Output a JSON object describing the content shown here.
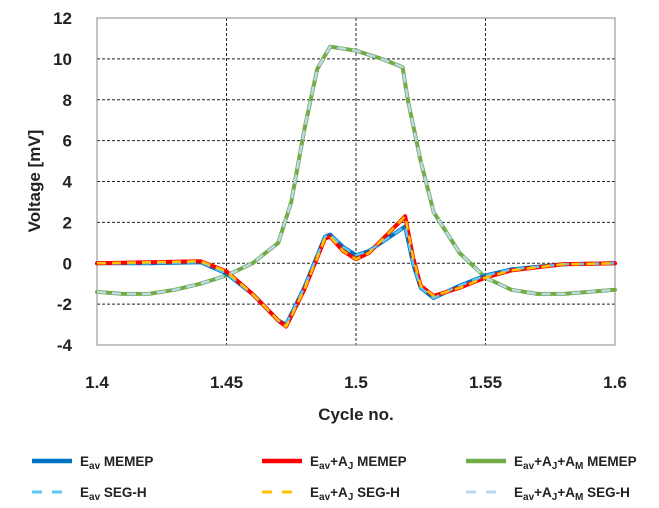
{
  "chart_data": {
    "type": "line",
    "xlabel": "Cycle no.",
    "ylabel": "Voltage [mV]",
    "xlim": [
      1.4,
      1.6
    ],
    "ylim": [
      -4,
      12
    ],
    "x_ticks": [
      "1.4",
      "1.45",
      "1.5",
      "1.55",
      "1.6"
    ],
    "y_ticks": [
      "12",
      "10",
      "8",
      "6",
      "4",
      "2",
      "0",
      "-2",
      "-4"
    ],
    "grid": true,
    "legend_position": "bottom",
    "series": [
      {
        "name": "E_av MEMEP",
        "color": "#0070c0",
        "style": "solid",
        "points": [
          [
            1.4,
            0.0
          ],
          [
            1.42,
            0.0
          ],
          [
            1.44,
            0.05
          ],
          [
            1.45,
            -0.5
          ],
          [
            1.46,
            -1.5
          ],
          [
            1.47,
            -2.8
          ],
          [
            1.473,
            -3.0
          ],
          [
            1.48,
            -1.2
          ],
          [
            1.488,
            1.3
          ],
          [
            1.49,
            1.4
          ],
          [
            1.495,
            0.8
          ],
          [
            1.5,
            0.4
          ],
          [
            1.505,
            0.6
          ],
          [
            1.512,
            1.2
          ],
          [
            1.519,
            1.8
          ],
          [
            1.522,
            0.0
          ],
          [
            1.525,
            -1.2
          ],
          [
            1.53,
            -1.7
          ],
          [
            1.54,
            -1.1
          ],
          [
            1.55,
            -0.6
          ],
          [
            1.56,
            -0.3
          ],
          [
            1.58,
            -0.05
          ],
          [
            1.6,
            0.0
          ]
        ]
      },
      {
        "name": "E_av SEG-H",
        "color": "#5bc8f0",
        "style": "dashed",
        "points": [
          [
            1.4,
            0.0
          ],
          [
            1.42,
            0.0
          ],
          [
            1.44,
            0.05
          ],
          [
            1.45,
            -0.5
          ],
          [
            1.46,
            -1.5
          ],
          [
            1.47,
            -2.8
          ],
          [
            1.473,
            -3.0
          ],
          [
            1.48,
            -1.2
          ],
          [
            1.488,
            1.3
          ],
          [
            1.49,
            1.4
          ],
          [
            1.495,
            0.8
          ],
          [
            1.5,
            0.4
          ],
          [
            1.505,
            0.6
          ],
          [
            1.512,
            1.2
          ],
          [
            1.519,
            1.8
          ],
          [
            1.522,
            0.0
          ],
          [
            1.525,
            -1.2
          ],
          [
            1.53,
            -1.7
          ],
          [
            1.54,
            -1.1
          ],
          [
            1.55,
            -0.6
          ],
          [
            1.56,
            -0.3
          ],
          [
            1.58,
            -0.05
          ],
          [
            1.6,
            0.0
          ]
        ]
      },
      {
        "name": "E_av+A_J MEMEP",
        "color": "#ff0000",
        "style": "solid",
        "points": [
          [
            1.4,
            0.0
          ],
          [
            1.42,
            0.05
          ],
          [
            1.44,
            0.1
          ],
          [
            1.45,
            -0.4
          ],
          [
            1.46,
            -1.5
          ],
          [
            1.47,
            -2.8
          ],
          [
            1.473,
            -3.1
          ],
          [
            1.48,
            -1.3
          ],
          [
            1.488,
            1.2
          ],
          [
            1.49,
            1.3
          ],
          [
            1.495,
            0.6
          ],
          [
            1.5,
            0.2
          ],
          [
            1.505,
            0.5
          ],
          [
            1.512,
            1.4
          ],
          [
            1.519,
            2.3
          ],
          [
            1.522,
            0.3
          ],
          [
            1.525,
            -1.1
          ],
          [
            1.53,
            -1.6
          ],
          [
            1.54,
            -1.2
          ],
          [
            1.55,
            -0.7
          ],
          [
            1.56,
            -0.35
          ],
          [
            1.58,
            -0.05
          ],
          [
            1.6,
            0.0
          ]
        ]
      },
      {
        "name": "E_av+A_J SEG-H",
        "color": "#ffc000",
        "style": "dashed",
        "points": [
          [
            1.4,
            0.0
          ],
          [
            1.42,
            0.05
          ],
          [
            1.44,
            0.1
          ],
          [
            1.45,
            -0.4
          ],
          [
            1.46,
            -1.5
          ],
          [
            1.47,
            -2.8
          ],
          [
            1.473,
            -3.1
          ],
          [
            1.48,
            -1.3
          ],
          [
            1.488,
            1.2
          ],
          [
            1.49,
            1.3
          ],
          [
            1.495,
            0.6
          ],
          [
            1.5,
            0.2
          ],
          [
            1.505,
            0.5
          ],
          [
            1.512,
            1.4
          ],
          [
            1.519,
            2.3
          ],
          [
            1.522,
            0.3
          ],
          [
            1.525,
            -1.1
          ],
          [
            1.53,
            -1.6
          ],
          [
            1.54,
            -1.2
          ],
          [
            1.55,
            -0.7
          ],
          [
            1.56,
            -0.35
          ],
          [
            1.58,
            -0.05
          ],
          [
            1.6,
            0.0
          ]
        ]
      },
      {
        "name": "E_av+A_J+A_M MEMEP",
        "color": "#70ad47",
        "style": "solid",
        "points": [
          [
            1.4,
            -1.4
          ],
          [
            1.41,
            -1.5
          ],
          [
            1.42,
            -1.5
          ],
          [
            1.43,
            -1.3
          ],
          [
            1.44,
            -1.0
          ],
          [
            1.45,
            -0.6
          ],
          [
            1.46,
            0.0
          ],
          [
            1.47,
            1.0
          ],
          [
            1.475,
            3.0
          ],
          [
            1.48,
            6.5
          ],
          [
            1.485,
            9.5
          ],
          [
            1.49,
            10.6
          ],
          [
            1.5,
            10.4
          ],
          [
            1.51,
            10.0
          ],
          [
            1.518,
            9.6
          ],
          [
            1.52,
            8.0
          ],
          [
            1.525,
            5.0
          ],
          [
            1.53,
            2.5
          ],
          [
            1.54,
            0.5
          ],
          [
            1.55,
            -0.7
          ],
          [
            1.56,
            -1.3
          ],
          [
            1.57,
            -1.5
          ],
          [
            1.58,
            -1.5
          ],
          [
            1.59,
            -1.4
          ],
          [
            1.6,
            -1.3
          ]
        ]
      },
      {
        "name": "E_av+A_J+A_M SEG-H",
        "color": "#bdd7ee",
        "style": "dashed",
        "points": [
          [
            1.4,
            -1.4
          ],
          [
            1.41,
            -1.5
          ],
          [
            1.42,
            -1.5
          ],
          [
            1.43,
            -1.3
          ],
          [
            1.44,
            -1.0
          ],
          [
            1.45,
            -0.6
          ],
          [
            1.46,
            0.0
          ],
          [
            1.47,
            1.0
          ],
          [
            1.475,
            3.0
          ],
          [
            1.48,
            6.5
          ],
          [
            1.485,
            9.5
          ],
          [
            1.49,
            10.6
          ],
          [
            1.5,
            10.4
          ],
          [
            1.51,
            10.0
          ],
          [
            1.518,
            9.6
          ],
          [
            1.52,
            8.0
          ],
          [
            1.525,
            5.0
          ],
          [
            1.53,
            2.5
          ],
          [
            1.54,
            0.5
          ],
          [
            1.55,
            -0.7
          ],
          [
            1.56,
            -1.3
          ],
          [
            1.57,
            -1.5
          ],
          [
            1.58,
            -1.5
          ],
          [
            1.59,
            -1.4
          ],
          [
            1.6,
            -1.3
          ]
        ]
      }
    ]
  },
  "legend": [
    {
      "base": "E",
      "sub": "av",
      "rest": " MEMEP",
      "color": "#0070c0",
      "style": "solid"
    },
    {
      "base": "E",
      "sub": "av",
      "rest": "+A",
      "sub2": "J",
      "rest2": " MEMEP",
      "color": "#ff0000",
      "style": "solid"
    },
    {
      "base": "E",
      "sub": "av",
      "rest": "+A",
      "sub2": "J",
      "rest2": "+A",
      "sub3": "M",
      "rest3": " MEMEP",
      "color": "#70ad47",
      "style": "solid"
    },
    {
      "base": "E",
      "sub": "av",
      "rest": " SEG-H",
      "color": "#5bc8f0",
      "style": "dashed"
    },
    {
      "base": "E",
      "sub": "av",
      "rest": "+A",
      "sub2": "J",
      "rest2": " SEG-H",
      "color": "#ffc000",
      "style": "dashed"
    },
    {
      "base": "E",
      "sub": "av",
      "rest": "+A",
      "sub2": "J",
      "rest2": "+A",
      "sub3": "M",
      "rest3": " SEG-H",
      "color": "#bdd7ee",
      "style": "dashed"
    }
  ]
}
